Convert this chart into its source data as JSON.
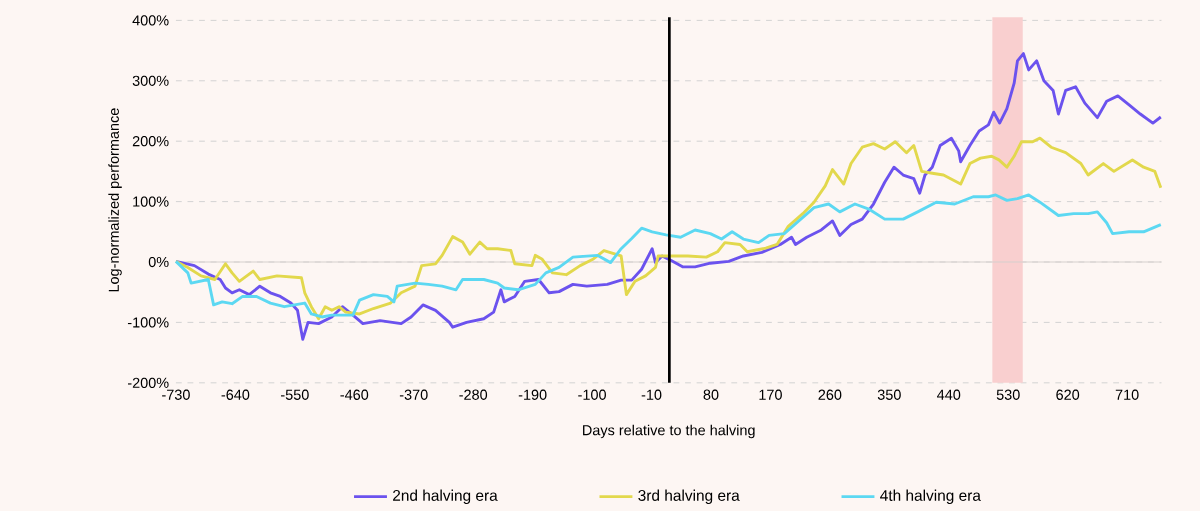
{
  "chart_data": {
    "type": "line",
    "xlabel": "Days relative to the halving",
    "ylabel": "Log-normalized performance",
    "xlim": [
      -730,
      762
    ],
    "ylim": [
      -200,
      405
    ],
    "xticks": [
      -730,
      -640,
      -550,
      -460,
      -370,
      -280,
      -190,
      -100,
      -10,
      80,
      170,
      260,
      350,
      440,
      530,
      620,
      710
    ],
    "yticks": [
      {
        "value": -200,
        "label": "-200%"
      },
      {
        "value": -100,
        "label": "-100%"
      },
      {
        "value": 0,
        "label": "0%"
      },
      {
        "value": 100,
        "label": "100%"
      },
      {
        "value": 200,
        "label": "200%"
      },
      {
        "value": 300,
        "label": "300%"
      },
      {
        "value": 400,
        "label": "400%"
      }
    ],
    "grid": "y",
    "legend": "bottom",
    "marker": "none",
    "line_style": "solid",
    "ref_lines": [
      {
        "axis": "y",
        "value": 0,
        "color": "#d6d0ce"
      },
      {
        "axis": "x",
        "value": 17,
        "color": "#000000"
      }
    ],
    "bands": [
      {
        "axis": "x",
        "from": 506,
        "to": 552,
        "color": "#f9cfcf"
      }
    ],
    "series": [
      {
        "name": "2nd halving era",
        "color": "#6b52ee",
        "x": [
          -730,
          -702,
          -681,
          -663,
          -655,
          -645,
          -634,
          -619,
          -603,
          -587,
          -572,
          -556,
          -546,
          -538,
          -530,
          -514,
          -494,
          -478,
          -462,
          -447,
          -421,
          -389,
          -374,
          -356,
          -337,
          -316,
          -311,
          -290,
          -264,
          -249,
          -238,
          -233,
          -217,
          -202,
          -181,
          -165,
          -150,
          -129,
          -108,
          -77,
          -56,
          -40,
          -25,
          -9,
          -4,
          6,
          17,
          37,
          56,
          79,
          107,
          129,
          157,
          185,
          202,
          208,
          225,
          247,
          264,
          275,
          292,
          309,
          326,
          343,
          357,
          371,
          387,
          396,
          404,
          415,
          427,
          444,
          455,
          458,
          472,
          486,
          500,
          508,
          517,
          528,
          539,
          544,
          553,
          561,
          573,
          584,
          598,
          606,
          617,
          632,
          646,
          665,
          679,
          696,
          713,
          730,
          749,
          761
        ],
        "values": [
          1,
          -6,
          -20,
          -29,
          -43,
          -51,
          -46,
          -54,
          -40,
          -51,
          -57,
          -68,
          -80,
          -128,
          -100,
          -102,
          -91,
          -74,
          -88,
          -102,
          -97,
          -102,
          -91,
          -71,
          -80,
          -100,
          -108,
          -100,
          -94,
          -83,
          -46,
          -66,
          -57,
          -32,
          -29,
          -51,
          -49,
          -37,
          -40,
          -37,
          -30,
          -30,
          -12,
          22,
          -1,
          10,
          4,
          -8,
          -8,
          -2,
          1,
          10,
          16,
          29,
          41,
          29,
          41,
          53,
          68,
          44,
          62,
          71,
          96,
          132,
          157,
          144,
          138,
          114,
          144,
          157,
          193,
          205,
          184,
          166,
          193,
          217,
          227,
          248,
          230,
          254,
          296,
          333,
          345,
          318,
          333,
          300,
          284,
          245,
          284,
          290,
          263,
          239,
          266,
          275,
          260,
          245,
          230,
          240
        ]
      },
      {
        "name": "3rd halving era",
        "color": "#e2d84c",
        "x": [
          -730,
          -712,
          -692,
          -671,
          -655,
          -645,
          -634,
          -613,
          -603,
          -577,
          -540,
          -535,
          -525,
          -514,
          -504,
          -494,
          -483,
          -473,
          -452,
          -431,
          -405,
          -389,
          -368,
          -358,
          -337,
          -327,
          -311,
          -296,
          -285,
          -270,
          -259,
          -243,
          -223,
          -217,
          -191,
          -186,
          -176,
          -160,
          -139,
          -118,
          -98,
          -82,
          -56,
          -48,
          -35,
          -19,
          -4,
          0,
          23,
          45,
          73,
          90,
          101,
          124,
          135,
          163,
          180,
          197,
          219,
          236,
          253,
          264,
          281,
          292,
          309,
          326,
          343,
          359,
          376,
          387,
          399,
          415,
          432,
          458,
          472,
          488,
          505,
          516,
          528,
          539,
          550,
          567,
          578,
          595,
          617,
          640,
          651,
          674,
          690,
          718,
          735,
          752,
          761
        ],
        "values": [
          1,
          -9,
          -23,
          -29,
          -3,
          -18,
          -32,
          -15,
          -29,
          -23,
          -26,
          -51,
          -74,
          -94,
          -74,
          -80,
          -74,
          -83,
          -86,
          -77,
          -68,
          -51,
          -40,
          -6,
          -3,
          11,
          42,
          33,
          13,
          33,
          22,
          22,
          19,
          -3,
          -6,
          11,
          5,
          -18,
          -21,
          -6,
          5,
          19,
          10,
          -54,
          -32,
          -23,
          -9,
          10,
          10,
          10,
          8,
          17,
          32,
          29,
          17,
          23,
          29,
          59,
          80,
          99,
          126,
          153,
          129,
          163,
          190,
          196,
          187,
          199,
          181,
          193,
          150,
          147,
          144,
          129,
          163,
          172,
          175,
          169,
          157,
          175,
          199,
          199,
          205,
          190,
          181,
          163,
          144,
          163,
          150,
          169,
          157,
          150,
          123
        ]
      },
      {
        "name": "4th halving era",
        "color": "#5cd8f2",
        "x": [
          -730,
          -712,
          -707,
          -681,
          -673,
          -660,
          -645,
          -629,
          -608,
          -587,
          -566,
          -535,
          -525,
          -509,
          -494,
          -462,
          -452,
          -431,
          -410,
          -400,
          -395,
          -368,
          -348,
          -327,
          -306,
          -296,
          -264,
          -243,
          -233,
          -212,
          -186,
          -170,
          -150,
          -129,
          -92,
          -72,
          -56,
          -40,
          -25,
          -9,
          12,
          34,
          56,
          79,
          96,
          112,
          129,
          152,
          168,
          191,
          213,
          236,
          258,
          275,
          298,
          320,
          343,
          371,
          393,
          421,
          449,
          477,
          500,
          511,
          528,
          544,
          561,
          578,
          606,
          629,
          651,
          665,
          679,
          688,
          713,
          735,
          761
        ],
        "values": [
          1,
          -18,
          -35,
          -29,
          -71,
          -66,
          -69,
          -57,
          -57,
          -68,
          -74,
          -68,
          -86,
          -91,
          -88,
          -88,
          -63,
          -54,
          -57,
          -66,
          -40,
          -35,
          -37,
          -40,
          -46,
          -29,
          -29,
          -35,
          -43,
          -46,
          -37,
          -18,
          -9,
          8,
          11,
          -1,
          22,
          39,
          56,
          50,
          45,
          41,
          53,
          47,
          38,
          50,
          38,
          32,
          44,
          47,
          68,
          90,
          96,
          83,
          96,
          87,
          71,
          71,
          83,
          99,
          96,
          108,
          108,
          111,
          102,
          105,
          111,
          99,
          77,
          80,
          80,
          83,
          65,
          47,
          50,
          50,
          62
        ]
      }
    ]
  }
}
